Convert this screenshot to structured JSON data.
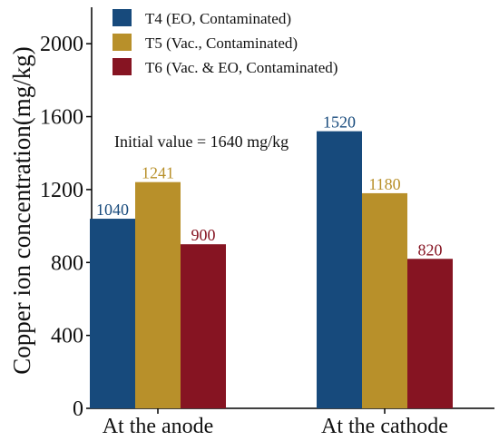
{
  "chart_data": {
    "type": "bar",
    "categories": [
      "At the anode",
      "At the cathode"
    ],
    "series": [
      {
        "name": "T4 (EO, Contaminated)",
        "values": [
          1040,
          1520
        ],
        "color": "#174a7c"
      },
      {
        "name": "T5 (Vac., Contaminated)",
        "values": [
          1241,
          1180
        ],
        "color": "#b8902a"
      },
      {
        "name": "T6 (Vac. & EO, Contaminated)",
        "values": [
          900,
          820
        ],
        "color": "#861422"
      }
    ],
    "data_labels": [
      [
        "1040",
        "1520"
      ],
      [
        "1241",
        "1180"
      ],
      [
        "900",
        "820"
      ]
    ],
    "ylabel": "Copper ion concentration(mg/kg)",
    "xlabel": "",
    "ylim": [
      0,
      2200
    ],
    "yticks": [
      0,
      400,
      800,
      1200,
      1600,
      2000
    ],
    "annotation": "Initial value = 1640 mg/kg",
    "legend_position": "top-left",
    "grid": false
  }
}
